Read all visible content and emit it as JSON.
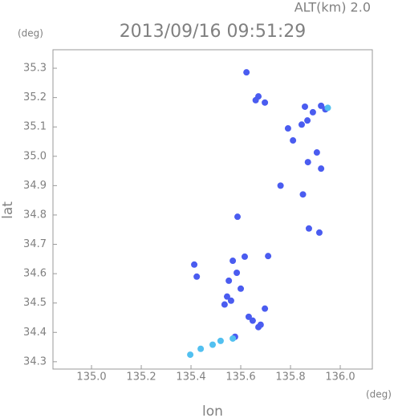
{
  "chart_data": {
    "type": "scatter",
    "title": "2013/09/16 09:51:29",
    "subtitle": "ALT(km) 2.0",
    "y_unit": "(deg)",
    "x_unit": "(deg)",
    "x_label": "lon",
    "y_label": "lat",
    "xlim": [
      134.845,
      136.129
    ],
    "ylim": [
      34.275,
      35.363
    ],
    "xticks": [
      {
        "value": 135.0,
        "label": "135.0"
      },
      135.2,
      135.4,
      135.6,
      135.8,
      {
        "value": 136.0,
        "label": "136.0"
      }
    ],
    "yticks": [
      34.3,
      34.4,
      34.5,
      34.6,
      34.7,
      34.8,
      34.9,
      {
        "value": 35.0,
        "label": "35.0"
      },
      35.1,
      35.2,
      35.3
    ],
    "series": [
      {
        "color": "#4a5cf0",
        "x": [
          135.623,
          135.671,
          135.697,
          135.66,
          135.858,
          135.868,
          135.89,
          135.923,
          135.845,
          135.906,
          135.923,
          135.81,
          135.79,
          135.874,
          135.916,
          135.587,
          135.568,
          135.616,
          135.552,
          135.584,
          135.6,
          135.561,
          135.632,
          135.68,
          135.671,
          135.648,
          135.697,
          135.413,
          135.423,
          135.535,
          135.545,
          135.577,
          135.71,
          135.76,
          135.85,
          135.87,
          135.94
        ],
        "y": [
          35.286,
          35.204,
          35.183,
          35.191,
          35.169,
          35.122,
          35.15,
          35.172,
          35.108,
          35.013,
          34.958,
          35.054,
          35.095,
          34.754,
          34.74,
          34.794,
          34.644,
          34.658,
          34.576,
          34.603,
          34.549,
          34.508,
          34.453,
          34.426,
          34.418,
          34.44,
          34.481,
          34.631,
          34.59,
          34.495,
          34.522,
          34.385,
          34.66,
          34.9,
          34.87,
          34.98,
          35.16
        ]
      },
      {
        "color": "#52c0f0",
        "x": [
          135.439,
          135.487,
          135.519,
          135.568,
          135.397,
          135.95
        ],
        "y": [
          34.344,
          34.358,
          34.371,
          34.379,
          34.324,
          35.165
        ]
      }
    ]
  }
}
